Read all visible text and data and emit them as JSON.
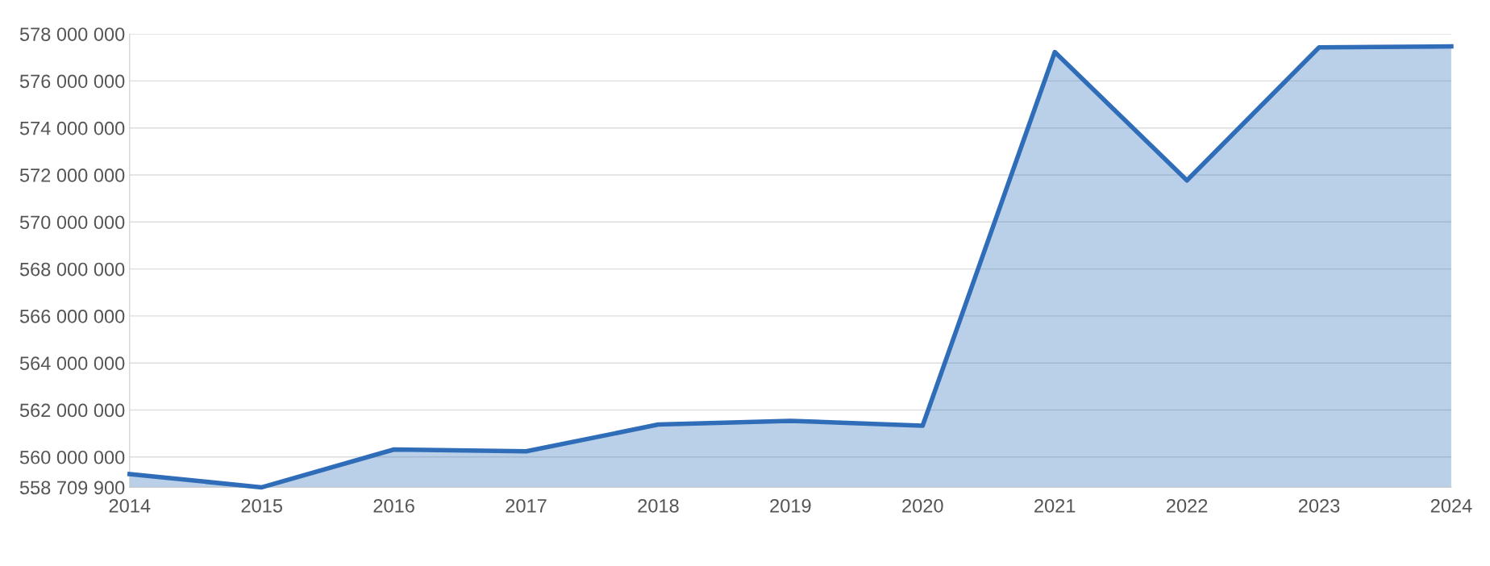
{
  "chart_data": {
    "type": "area",
    "x": [
      2014,
      2015,
      2016,
      2017,
      2018,
      2019,
      2020,
      2021,
      2022,
      2023,
      2024
    ],
    "series": [
      {
        "color": "#2f6db8",
        "values": [
          559270000,
          558710000,
          560320000,
          560240000,
          561380000,
          561540000,
          561330000,
          577230000,
          571770000,
          577430000,
          577470000
        ]
      }
    ],
    "xlim": [
      2014,
      2024
    ],
    "xticks": [
      2014,
      2015,
      2016,
      2017,
      2018,
      2019,
      2020,
      2021,
      2022,
      2023,
      2024
    ],
    "ylim": [
      558709900,
      578000000
    ],
    "yticks": [
      {
        "value": 558709900,
        "label": "558 709 900"
      },
      {
        "value": 560000000,
        "label": "560 000 000"
      },
      {
        "value": 562000000,
        "label": "562 000 000"
      },
      {
        "value": 564000000,
        "label": "564 000 000"
      },
      {
        "value": 566000000,
        "label": "566 000 000"
      },
      {
        "value": 568000000,
        "label": "568 000 000"
      },
      {
        "value": 570000000,
        "label": "570 000 000"
      },
      {
        "value": 572000000,
        "label": "572 000 000"
      },
      {
        "value": 574000000,
        "label": "574 000 000"
      },
      {
        "value": 576000000,
        "label": "576 000 000"
      },
      {
        "value": 578000000,
        "label": "578 000 000"
      }
    ],
    "grid": "y"
  }
}
